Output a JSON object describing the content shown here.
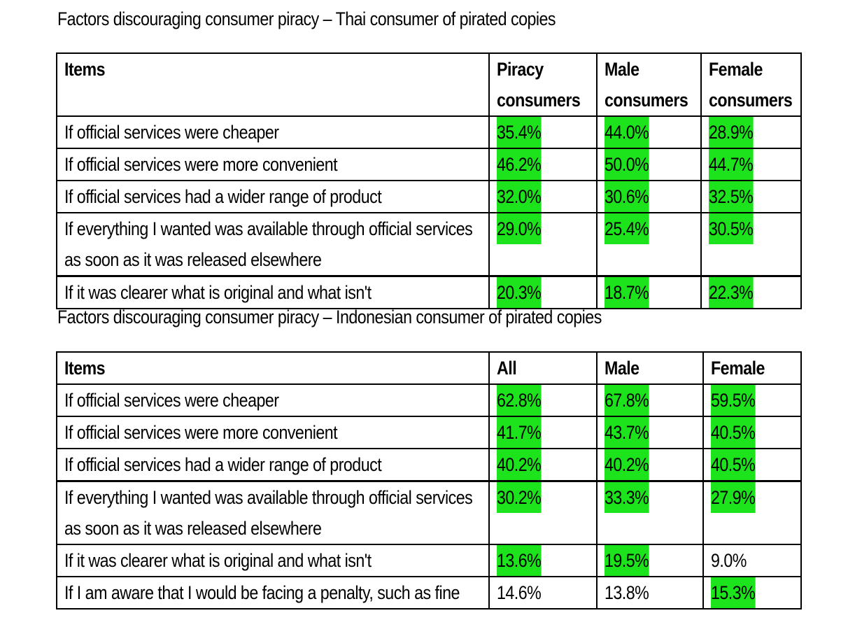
{
  "tables": [
    {
      "title": "Factors discouraging consumer piracy – Thai consumer of pirated copies",
      "headers": [
        [
          "Items"
        ],
        [
          "Piracy",
          "consumers"
        ],
        [
          "Male",
          "consumers"
        ],
        [
          "Female",
          "consumers"
        ]
      ],
      "rows": [
        {
          "item": [
            "If official services were cheaper"
          ],
          "values": [
            "35.4%",
            "44.0%",
            "28.9%"
          ],
          "highlight": [
            true,
            true,
            true
          ]
        },
        {
          "item": [
            "If official services were more convenient"
          ],
          "values": [
            "46.2%",
            "50.0%",
            "44.7%"
          ],
          "highlight": [
            true,
            true,
            true
          ]
        },
        {
          "item": [
            "If official services had a wider range of product"
          ],
          "values": [
            "32.0%",
            "30.6%",
            "32.5%"
          ],
          "highlight": [
            true,
            true,
            true
          ]
        },
        {
          "item": [
            "If everything I wanted was available through official services",
            "as soon as it was released elsewhere"
          ],
          "values": [
            "29.0%",
            "25.4%",
            "30.5%"
          ],
          "highlight": [
            true,
            true,
            true
          ]
        },
        {
          "item": [
            "If it was clearer what is original and what isn't"
          ],
          "values": [
            "20.3%",
            "18.7%",
            "22.3%"
          ],
          "highlight": [
            true,
            true,
            true
          ]
        }
      ]
    },
    {
      "title": "Factors discouraging consumer piracy – Indonesian consumer of pirated copies",
      "headers": [
        [
          "Items"
        ],
        [
          "All"
        ],
        [
          "Male"
        ],
        [
          "Female"
        ]
      ],
      "rows": [
        {
          "item": [
            "If official services were cheaper"
          ],
          "values": [
            "62.8%",
            "67.8%",
            "59.5%"
          ],
          "highlight": [
            true,
            true,
            true
          ]
        },
        {
          "item": [
            "If official services were more convenient"
          ],
          "values": [
            "41.7%",
            "43.7%",
            "40.5%"
          ],
          "highlight": [
            true,
            true,
            true
          ]
        },
        {
          "item": [
            "If official services had a wider range of product"
          ],
          "values": [
            "40.2%",
            "40.2%",
            "40.5%"
          ],
          "highlight": [
            true,
            true,
            true
          ]
        },
        {
          "item": [
            "If everything I wanted was available through official services",
            "as soon as it was released elsewhere"
          ],
          "values": [
            "30.2%",
            "33.3%",
            "27.9%"
          ],
          "highlight": [
            true,
            true,
            true
          ]
        },
        {
          "item": [
            "If it was clearer what is original and what isn't"
          ],
          "values": [
            "13.6%",
            "19.5%",
            "9.0%"
          ],
          "highlight": [
            true,
            true,
            false
          ]
        },
        {
          "item": [
            "If I am aware that I would be facing a penalty, such as fine"
          ],
          "values": [
            "14.6%",
            "13.8%",
            "15.3%"
          ],
          "highlight": [
            false,
            false,
            true
          ]
        }
      ]
    }
  ],
  "colors": {
    "highlight": "#1de31d"
  }
}
